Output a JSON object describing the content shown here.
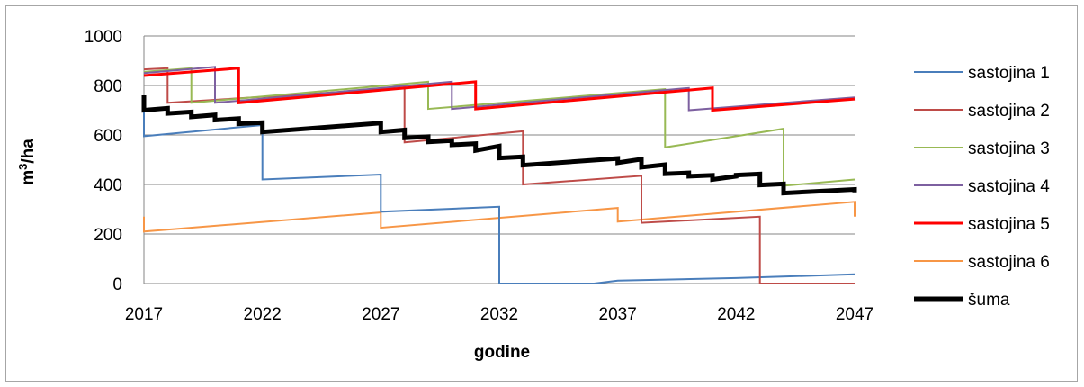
{
  "chart_data": {
    "type": "line",
    "title": "",
    "xlabel": "godine",
    "ylabel": "m³/ha",
    "ylabel_base": "m",
    "ylabel_sup": "3",
    "ylabel_rest": "/ha",
    "xlim": [
      2017,
      2047
    ],
    "ylim": [
      0,
      1000
    ],
    "x_ticks": [
      2017,
      2022,
      2027,
      2032,
      2037,
      2042,
      2047
    ],
    "y_ticks": [
      0,
      200,
      400,
      600,
      800,
      1000
    ],
    "grid": "horizontal",
    "legend_position": "right",
    "series": [
      {
        "name": "sastojina 1",
        "color": "#4a7ebb",
        "width": 2,
        "points": [
          [
            2017,
            700
          ],
          [
            2017,
            595
          ],
          [
            2022,
            640
          ],
          [
            2022,
            420
          ],
          [
            2027,
            440
          ],
          [
            2027,
            290
          ],
          [
            2032,
            310
          ],
          [
            2032,
            0
          ],
          [
            2036,
            0
          ],
          [
            2037,
            12
          ],
          [
            2042,
            22
          ],
          [
            2047,
            37
          ]
        ]
      },
      {
        "name": "sastojina 2",
        "color": "#be4b48",
        "width": 2,
        "points": [
          [
            2017,
            865
          ],
          [
            2018,
            870
          ],
          [
            2018,
            730
          ],
          [
            2028,
            790
          ],
          [
            2028,
            570
          ],
          [
            2033,
            615
          ],
          [
            2033,
            400
          ],
          [
            2038,
            435
          ],
          [
            2038,
            245
          ],
          [
            2043,
            270
          ],
          [
            2043,
            0
          ],
          [
            2047,
            0
          ]
        ]
      },
      {
        "name": "sastojina 3",
        "color": "#98b954",
        "width": 2,
        "points": [
          [
            2017,
            855
          ],
          [
            2019,
            870
          ],
          [
            2019,
            730
          ],
          [
            2029,
            815
          ],
          [
            2029,
            705
          ],
          [
            2039,
            785
          ],
          [
            2039,
            550
          ],
          [
            2044,
            625
          ],
          [
            2044,
            395
          ],
          [
            2047,
            420
          ]
        ]
      },
      {
        "name": "sastojina 4",
        "color": "#7d60a0",
        "width": 2,
        "points": [
          [
            2017,
            850
          ],
          [
            2020,
            875
          ],
          [
            2020,
            730
          ],
          [
            2030,
            815
          ],
          [
            2030,
            705
          ],
          [
            2040,
            790
          ],
          [
            2040,
            700
          ],
          [
            2047,
            752
          ]
        ]
      },
      {
        "name": "sastojina 5",
        "color": "#ff0000",
        "width": 3,
        "points": [
          [
            2017,
            840
          ],
          [
            2021,
            870
          ],
          [
            2021,
            730
          ],
          [
            2031,
            815
          ],
          [
            2031,
            705
          ],
          [
            2041,
            790
          ],
          [
            2041,
            700
          ],
          [
            2047,
            745
          ]
        ]
      },
      {
        "name": "sastojina 6",
        "color": "#f79646",
        "width": 2,
        "points": [
          [
            2017,
            270
          ],
          [
            2017,
            210
          ],
          [
            2027,
            287
          ],
          [
            2027,
            225
          ],
          [
            2037,
            305
          ],
          [
            2037,
            250
          ],
          [
            2047,
            330
          ],
          [
            2047,
            270
          ]
        ]
      },
      {
        "name": "šuma",
        "color": "#000000",
        "width": 5,
        "points": [
          [
            2017,
            760
          ],
          [
            2017,
            700
          ],
          [
            2018,
            708
          ],
          [
            2018,
            687
          ],
          [
            2019,
            693
          ],
          [
            2019,
            673
          ],
          [
            2020,
            681
          ],
          [
            2020,
            660
          ],
          [
            2021,
            666
          ],
          [
            2021,
            645
          ],
          [
            2022,
            650
          ],
          [
            2022,
            612
          ],
          [
            2027,
            648
          ],
          [
            2027,
            612
          ],
          [
            2028,
            620
          ],
          [
            2028,
            588
          ],
          [
            2029,
            593
          ],
          [
            2029,
            572
          ],
          [
            2030,
            577
          ],
          [
            2030,
            560
          ],
          [
            2031,
            565
          ],
          [
            2031,
            537
          ],
          [
            2032,
            555
          ],
          [
            2032,
            507
          ],
          [
            2033,
            512
          ],
          [
            2033,
            478
          ],
          [
            2037,
            505
          ],
          [
            2037,
            488
          ],
          [
            2038,
            502
          ],
          [
            2038,
            470
          ],
          [
            2039,
            480
          ],
          [
            2039,
            443
          ],
          [
            2040,
            447
          ],
          [
            2040,
            433
          ],
          [
            2041,
            437
          ],
          [
            2041,
            420
          ],
          [
            2042,
            433
          ],
          [
            2042,
            438
          ],
          [
            2043,
            442
          ],
          [
            2043,
            398
          ],
          [
            2044,
            402
          ],
          [
            2044,
            365
          ],
          [
            2047,
            380
          ],
          [
            2047,
            368
          ]
        ]
      }
    ]
  }
}
